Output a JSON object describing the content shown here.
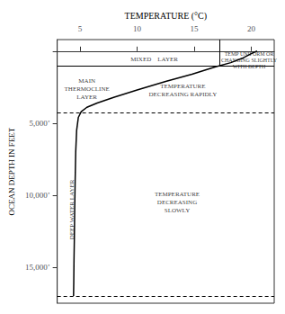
{
  "chart_data": {
    "type": "line",
    "xlabel": "TEMPERATURE (°C)",
    "ylabel": "OCEAN DEPTH IN FEET",
    "xlim": [
      3,
      22
    ],
    "ylim": [
      17500,
      -800
    ],
    "xticks": [
      5,
      10,
      15,
      20
    ],
    "yticks": [
      {
        "value": 0,
        "label": ""
      },
      {
        "value": 5000,
        "label": "5,000’"
      },
      {
        "value": 10000,
        "label": "10,000’"
      },
      {
        "value": 15000,
        "label": "15,000’"
      }
    ],
    "x": [
      20.5,
      20.2,
      19.8,
      19.2,
      18.2,
      16.8,
      14.8,
      12.5,
      10.0,
      8.0,
      6.5,
      5.6,
      5.1,
      4.85,
      4.7,
      4.62,
      4.57,
      4.53,
      4.5,
      4.47,
      4.45,
      4.43
    ],
    "values": [
      0,
      100,
      250,
      500,
      800,
      1100,
      1600,
      2100,
      2700,
      3200,
      3600,
      3900,
      4200,
      4600,
      5500,
      7000,
      9000,
      11000,
      13000,
      14500,
      16000,
      17000
    ],
    "color": "#000000",
    "layer_boundaries": [
      1050,
      4300,
      17000
    ],
    "divider_x": 17.2,
    "annotations": [
      {
        "text": "MIXED    LAYER",
        "x": 11.5,
        "y": 580
      },
      {
        "text": "TEMP UNIFORM OR\nCHANGING SLIGHTLY\nWITH DEPTH",
        "x": 19.8,
        "y": 650
      },
      {
        "text": "MAIN\nTHERMOCLINE\nLAYER",
        "x": 5.6,
        "y": 2650
      },
      {
        "text": "TEMPERATURE\nDECREASING RAPIDLY",
        "x": 14.0,
        "y": 2700
      },
      {
        "text": "DEEP WATER LAYER",
        "x": 4.25,
        "y": 11000
      },
      {
        "text": "TEMPERATURE\nDECREASING\nSLOWLY",
        "x": 13.5,
        "y": 10500
      }
    ],
    "grid": false
  }
}
